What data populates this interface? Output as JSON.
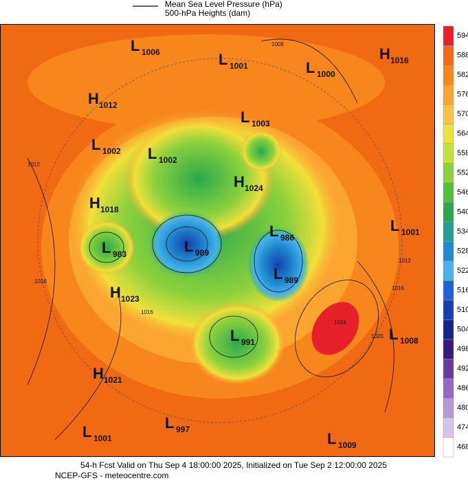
{
  "legend": [
    "Mean Sea Level Pressure (hPa)",
    "500-hPa Heights (dam)"
  ],
  "centers": [
    {
      "kind": "L",
      "value": "1006"
    },
    {
      "kind": "L",
      "value": "1001"
    },
    {
      "kind": "L",
      "value": "1000"
    },
    {
      "kind": "H",
      "value": "1016"
    },
    {
      "kind": "H",
      "value": "1012"
    },
    {
      "kind": "L",
      "value": "1003"
    },
    {
      "kind": "L",
      "value": "1002"
    },
    {
      "kind": "L",
      "value": "1002"
    },
    {
      "kind": "H",
      "value": "1024"
    },
    {
      "kind": "H",
      "value": "1018"
    },
    {
      "kind": "L",
      "value": "986"
    },
    {
      "kind": "L",
      "value": "1001"
    },
    {
      "kind": "L",
      "value": "983"
    },
    {
      "kind": "L",
      "value": "989"
    },
    {
      "kind": "L",
      "value": "989"
    },
    {
      "kind": "H",
      "value": "1023"
    },
    {
      "kind": "L",
      "value": "991"
    },
    {
      "kind": "L",
      "value": "1008"
    },
    {
      "kind": "H",
      "value": "1021"
    },
    {
      "kind": "L",
      "value": "997"
    },
    {
      "kind": "L",
      "value": "1001"
    },
    {
      "kind": "L",
      "value": "1009"
    }
  ],
  "isobar_labels": [
    "1008",
    "1012",
    "1016",
    "1016",
    "1020",
    "1024",
    "1012",
    "1016"
  ],
  "colorbar": {
    "levels": [
      594,
      588,
      582,
      576,
      570,
      564,
      558,
      552,
      546,
      540,
      534,
      528,
      522,
      516,
      510,
      504,
      498,
      492,
      486,
      480,
      474,
      468
    ],
    "colors": [
      "#e8202a",
      "#ef6a12",
      "#f7871c",
      "#fba430",
      "#fdc242",
      "#f1e03a",
      "#c6e23a",
      "#8cd23c",
      "#52bf3b",
      "#2aa94c",
      "#22a18e",
      "#1f8bd0",
      "#45b2ee",
      "#1c64d6",
      "#1440b0",
      "#14238a",
      "#3a1a7a",
      "#6a3aa0",
      "#9468c4",
      "#b699d6",
      "#d3c4e8",
      "#ffffff"
    ]
  },
  "footer": [
    "54-h Fcst Valid on Thu Sep  4 18:00:00 2025, Initialized on Tue Sep  2 12:00:00 2025",
    "NCEP-GFS - meteocentre.com"
  ]
}
